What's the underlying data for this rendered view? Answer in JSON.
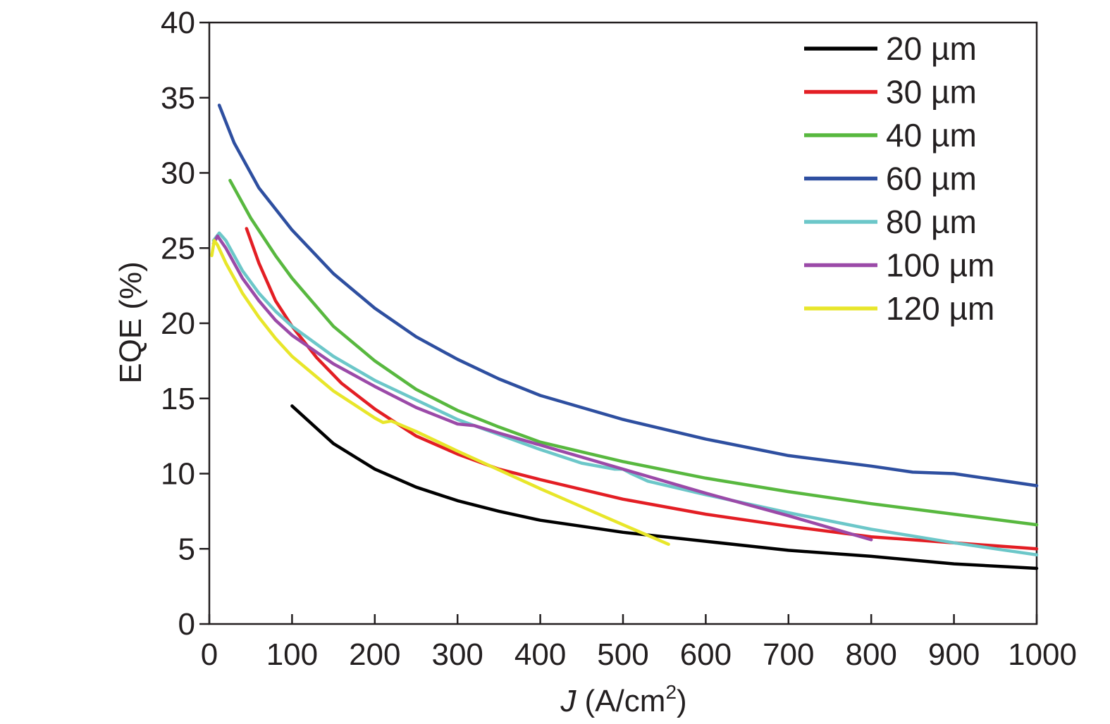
{
  "chart_data": {
    "type": "line",
    "title": "",
    "xlabel": {
      "var": "J",
      "unit_open": " (A/cm",
      "sup": "2",
      "unit_close": ")"
    },
    "ylabel": "EQE (%)",
    "xlim": [
      0,
      1000
    ],
    "ylim": [
      0,
      40
    ],
    "xticks": [
      0,
      100,
      200,
      300,
      400,
      500,
      600,
      700,
      800,
      900,
      1000
    ],
    "yticks": [
      0,
      5,
      10,
      15,
      20,
      25,
      30,
      35,
      40
    ],
    "grid": false,
    "legend_position": "top-right",
    "series": [
      {
        "name": "20 µm",
        "color": "#000000",
        "x": [
          100,
          120,
          150,
          200,
          250,
          300,
          350,
          400,
          450,
          500,
          600,
          700,
          800,
          900,
          1000
        ],
        "y": [
          14.5,
          13.5,
          12.0,
          10.3,
          9.1,
          8.2,
          7.5,
          6.9,
          6.5,
          6.1,
          5.5,
          4.9,
          4.5,
          4.0,
          3.7
        ]
      },
      {
        "name": "30 µm",
        "color": "#e31e24",
        "x": [
          45,
          60,
          80,
          100,
          130,
          160,
          200,
          250,
          300,
          350,
          400,
          500,
          600,
          700,
          800,
          900,
          1000
        ],
        "y": [
          26.3,
          24.0,
          21.5,
          19.8,
          17.7,
          16.0,
          14.3,
          12.5,
          11.3,
          10.3,
          9.6,
          8.3,
          7.3,
          6.5,
          5.8,
          5.4,
          5.0
        ]
      },
      {
        "name": "40 µm",
        "color": "#58b83f",
        "x": [
          25,
          50,
          80,
          100,
          150,
          200,
          250,
          300,
          350,
          400,
          500,
          600,
          700,
          800,
          900,
          1000
        ],
        "y": [
          29.5,
          27.0,
          24.5,
          23.0,
          19.8,
          17.5,
          15.6,
          14.2,
          13.1,
          12.1,
          10.8,
          9.7,
          8.8,
          8.0,
          7.3,
          6.6
        ]
      },
      {
        "name": "60 µm",
        "color": "#2e4fa0",
        "x": [
          12,
          30,
          60,
          100,
          150,
          200,
          250,
          300,
          350,
          400,
          500,
          600,
          700,
          800,
          850,
          900,
          1000
        ],
        "y": [
          34.5,
          32.0,
          29.0,
          26.2,
          23.3,
          21.0,
          19.1,
          17.6,
          16.3,
          15.2,
          13.6,
          12.3,
          11.2,
          10.5,
          10.1,
          10.0,
          9.2
        ]
      },
      {
        "name": "80 µm",
        "color": "#6cc7c9",
        "x": [
          5,
          12,
          20,
          40,
          60,
          80,
          100,
          150,
          200,
          250,
          300,
          350,
          400,
          450,
          490,
          500,
          510,
          530,
          600,
          700,
          800,
          900,
          1000
        ],
        "y": [
          25.5,
          26.0,
          25.5,
          23.5,
          22.0,
          20.8,
          19.8,
          17.8,
          16.2,
          14.9,
          13.6,
          12.6,
          11.6,
          10.7,
          10.3,
          10.3,
          10.0,
          9.5,
          8.6,
          7.4,
          6.3,
          5.4,
          4.6
        ]
      },
      {
        "name": "100 µm",
        "color": "#9b4aa8",
        "x": [
          5,
          10,
          20,
          40,
          60,
          80,
          100,
          150,
          200,
          250,
          300,
          320,
          350,
          400,
          500,
          600,
          700,
          800
        ],
        "y": [
          25.3,
          25.8,
          25.0,
          23.0,
          21.5,
          20.2,
          19.2,
          17.3,
          15.8,
          14.4,
          13.3,
          13.2,
          12.7,
          11.9,
          10.3,
          8.7,
          7.2,
          5.6
        ]
      },
      {
        "name": "120 µm",
        "color": "#e8e62a",
        "x": [
          3,
          6,
          10,
          20,
          40,
          60,
          80,
          100,
          150,
          200,
          210,
          220,
          250,
          300,
          400,
          450,
          500,
          555
        ],
        "y": [
          24.5,
          25.5,
          25.2,
          24.0,
          22.0,
          20.4,
          19.0,
          17.8,
          15.5,
          13.7,
          13.4,
          13.5,
          12.8,
          11.5,
          9.0,
          7.8,
          6.6,
          5.3
        ]
      }
    ]
  }
}
